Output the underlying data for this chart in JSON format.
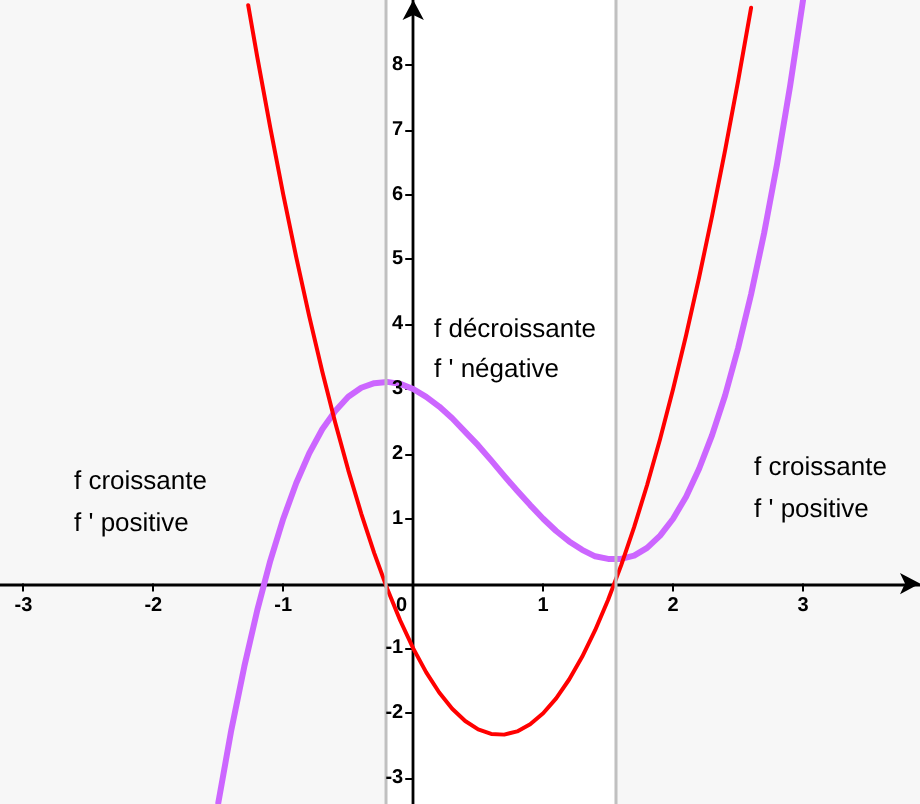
{
  "chart_data": {
    "type": "line",
    "xlim": [
      -3.18,
      3.9
    ],
    "ylim": [
      -3.4,
      9.0
    ],
    "xticks": [
      -3,
      -2,
      -1,
      0,
      1,
      2,
      3
    ],
    "yticks": [
      -3,
      -2,
      -1,
      1,
      2,
      3,
      4,
      5,
      6,
      7,
      8
    ],
    "marker": "none",
    "line_style": "solid",
    "series": [
      {
        "color": "#cc66ff",
        "x": [
          -1.5,
          -1.4,
          -1.3,
          -1.2,
          -1.1,
          -1.0,
          -0.9,
          -0.8,
          -0.7,
          -0.6,
          -0.5,
          -0.4,
          -0.3,
          -0.2,
          -0.1,
          0,
          0.1,
          0.2,
          0.3,
          0.4,
          0.5,
          0.6,
          0.7,
          0.8,
          0.9,
          1.0,
          1.1,
          1.2,
          1.3,
          1.4,
          1.5,
          1.6,
          1.7,
          1.8,
          1.9,
          2.0,
          2.1,
          2.2,
          2.3,
          2.4,
          2.5,
          2.6,
          2.7,
          2.8,
          2.9,
          3.0
        ],
        "values": [
          -3.38,
          -2.26,
          -1.28,
          -0.41,
          0.35,
          1,
          1.55,
          2.01,
          2.38,
          2.66,
          2.88,
          3.02,
          3.09,
          3.11,
          3.08,
          3,
          2.88,
          2.73,
          2.55,
          2.34,
          2.13,
          1.9,
          1.66,
          1.43,
          1.21,
          1,
          0.81,
          0.65,
          0.52,
          0.42,
          0.38,
          0.38,
          0.43,
          0.55,
          0.74,
          1,
          1.34,
          1.77,
          2.29,
          2.9,
          3.63,
          4.46,
          5.4,
          6.47,
          7.67,
          9.0
        ]
      },
      {
        "color": "#ff0000",
        "x": [
          -1.27,
          -1.2,
          -1.1,
          -1.0,
          -0.9,
          -0.8,
          -0.7,
          -0.6,
          -0.5,
          -0.4,
          -0.3,
          -0.2,
          -0.1,
          0,
          0.1,
          0.2,
          0.3,
          0.4,
          0.5,
          0.6,
          0.7,
          0.8,
          0.9,
          1.0,
          1.1,
          1.2,
          1.3,
          1.4,
          1.5,
          1.6,
          1.7,
          1.8,
          1.9,
          2.0,
          2.1,
          2.2,
          2.3,
          2.4,
          2.5,
          2.6
        ],
        "values": [
          8.92,
          8.12,
          7.03,
          6,
          5.03,
          4.12,
          3.27,
          2.48,
          1.75,
          1.08,
          0.47,
          -0.08,
          -0.57,
          -1,
          -1.37,
          -1.68,
          -1.93,
          -2.12,
          -2.25,
          -2.32,
          -2.33,
          -2.28,
          -2.17,
          -2,
          -1.77,
          -1.48,
          -1.13,
          -0.72,
          -0.25,
          0.28,
          0.87,
          1.52,
          2.23,
          3,
          3.83,
          4.72,
          5.67,
          6.68,
          7.75,
          8.88
        ]
      }
    ],
    "bands": [
      {
        "axis": "x",
        "from": -3.18,
        "to": -0.22,
        "color": "#f7f7f7"
      },
      {
        "axis": "x",
        "from": 1.55,
        "to": 3.9,
        "color": "#f7f7f7"
      }
    ],
    "ref_lines": [
      {
        "axis": "x",
        "value": -0.22,
        "color": "#c0c0c0"
      },
      {
        "axis": "x",
        "value": 1.55,
        "color": "#c0c0c0"
      }
    ],
    "annotations": [
      "f croissante",
      "f ' positive",
      "f décroissante",
      "f ' négative",
      "f croissante",
      "f ' positive"
    ]
  }
}
